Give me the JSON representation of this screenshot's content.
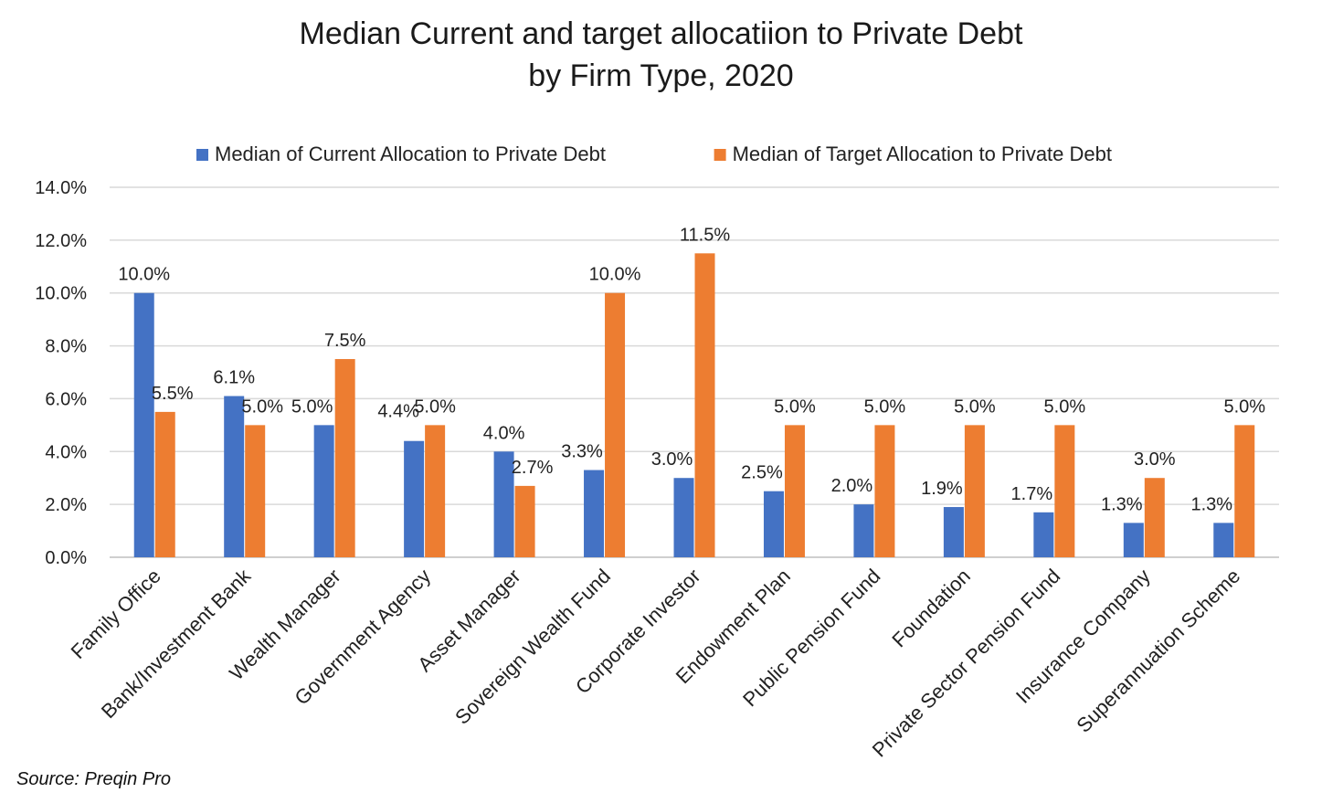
{
  "chart_data": {
    "type": "bar",
    "title_lines": [
      "Median Current and target allocatiion to Private Debt",
      "by Firm Type, 2020"
    ],
    "source": "Source: Preqin Pro",
    "categories": [
      "Family Office",
      "Bank/Investment Bank",
      "Wealth Manager",
      "Government Agency",
      "Asset Manager",
      "Sovereign Wealth Fund",
      "Corporate Investor",
      "Endowment Plan",
      "Public Pension Fund",
      "Foundation",
      "Private Sector Pension Fund",
      "Insurance Company",
      "Superannuation Scheme"
    ],
    "series": [
      {
        "name": "Median of Current Allocation to Private Debt",
        "color": "#4472C4",
        "values": [
          10.0,
          6.1,
          5.0,
          4.4,
          4.0,
          3.3,
          3.0,
          2.5,
          2.0,
          1.9,
          1.7,
          1.3,
          1.3
        ],
        "labels": [
          "10.0%",
          "6.1%",
          "5.0%",
          "4.4%",
          "4.0%",
          "3.3%",
          "3.0%",
          "2.5%",
          "2.0%",
          "1.9%",
          "1.7%",
          "1.3%",
          "1.3%"
        ]
      },
      {
        "name": "Median of Target Allocation to Private Debt",
        "color": "#ED7D31",
        "values": [
          5.5,
          5.0,
          7.5,
          5.0,
          2.7,
          10.0,
          11.5,
          5.0,
          5.0,
          5.0,
          5.0,
          3.0,
          5.0
        ],
        "labels": [
          "5.5%",
          "5.0%",
          "7.5%",
          "5.0%",
          "2.7%",
          "10.0%",
          "11.5%",
          "5.0%",
          "5.0%",
          "5.0%",
          "5.0%",
          "3.0%",
          "5.0%"
        ]
      }
    ],
    "ylim": [
      0,
      14
    ],
    "yticks": [
      0,
      2,
      4,
      6,
      8,
      10,
      12,
      14
    ],
    "ytick_labels": [
      "0.0%",
      "2.0%",
      "4.0%",
      "6.0%",
      "8.0%",
      "10.0%",
      "12.0%",
      "14.0%"
    ],
    "grid": true,
    "legend_position": "top-center"
  }
}
